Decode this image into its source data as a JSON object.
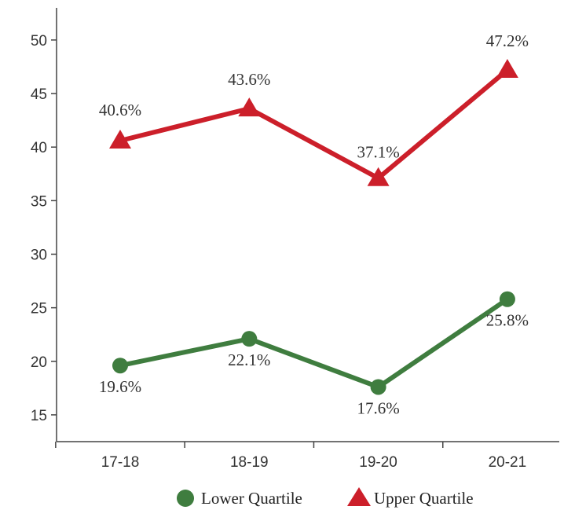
{
  "chart_data": {
    "type": "line",
    "title": "",
    "xlabel": "",
    "ylabel": "",
    "categories": [
      "17-18",
      "18-19",
      "19-20",
      "20-21"
    ],
    "ylim": [
      12.5,
      53
    ],
    "y_ticks": [
      15,
      20,
      25,
      30,
      35,
      40,
      45,
      50
    ],
    "grid": false,
    "legend_position": "bottom",
    "series": [
      {
        "name": "Lower Quartile",
        "values": [
          19.6,
          22.1,
          17.6,
          25.8
        ],
        "labels": [
          "19.6%",
          "22.1%",
          "17.6%",
          "25.8%"
        ],
        "color": "#3f7d3f",
        "marker": "circle"
      },
      {
        "name": "Upper Quartile",
        "values": [
          40.6,
          43.6,
          37.1,
          47.2
        ],
        "labels": [
          "40.6%",
          "43.6%",
          "37.1%",
          "47.2%"
        ],
        "color": "#cc1f2a",
        "marker": "triangle"
      }
    ]
  }
}
